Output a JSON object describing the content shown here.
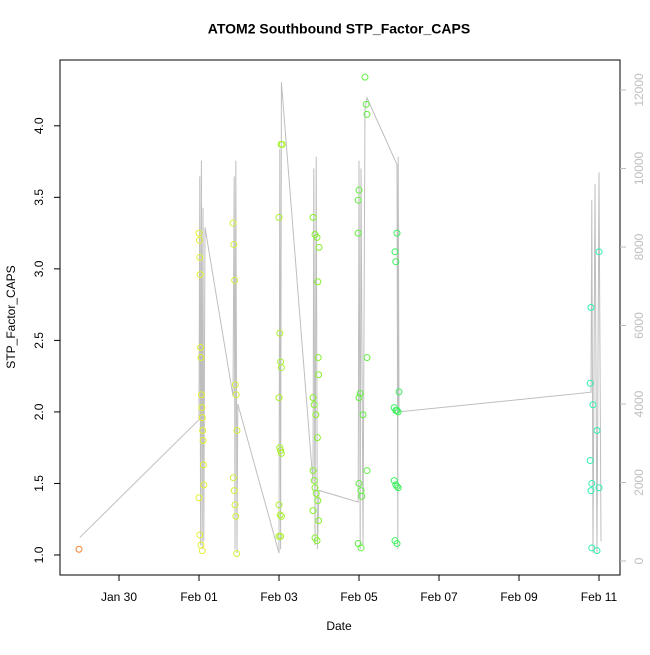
{
  "chart_data": {
    "type": "scatter",
    "title": "ATOM2 Southbound STP_Factor_CAPS",
    "x_label": "Date",
    "y_label": "STP_Factor_CAPS",
    "xlim": [
      28.525,
      42.525
    ],
    "ylim": [
      0.86,
      4.46
    ],
    "y2lim": [
      -357,
      12764
    ],
    "xticks": [
      {
        "value": 30,
        "label": "Jan 30"
      },
      {
        "value": 32,
        "label": "Feb 01"
      },
      {
        "value": 34,
        "label": "Feb 03"
      },
      {
        "value": 36,
        "label": "Feb 05"
      },
      {
        "value": 38,
        "label": "Feb 07"
      },
      {
        "value": 40,
        "label": "Feb 09"
      },
      {
        "value": 42,
        "label": "Feb 11"
      }
    ],
    "yticks": [
      {
        "value": 1,
        "label": "1.0"
      },
      {
        "value": 1.5,
        "label": "1.5"
      },
      {
        "value": 2,
        "label": "2.0"
      },
      {
        "value": 2.5,
        "label": "2.5"
      },
      {
        "value": 3,
        "label": "3.0"
      },
      {
        "value": 3.5,
        "label": "3.5"
      },
      {
        "value": 4,
        "label": "4.0"
      }
    ],
    "y2ticks": [
      0,
      2000,
      4000,
      6000,
      8000,
      10000,
      12000
    ],
    "y2_color": "#bebebe",
    "series": [
      {
        "type": "line",
        "axis": "y2",
        "color": "#bebebe",
        "x": [
          29.02,
          32.0,
          32.02,
          32.04,
          32.06,
          32.08,
          32.1,
          32.12,
          32.15,
          32.85,
          32.88,
          32.9,
          32.92,
          32.95,
          32.97,
          34.0,
          34.02,
          34.04,
          34.06,
          34.85,
          34.87,
          34.9,
          34.93,
          34.96,
          35.0,
          35.98,
          36.0,
          36.03,
          36.05,
          36.1,
          36.15,
          36.2,
          36.95,
          36.97,
          36.98,
          37.0,
          41.8,
          41.82,
          41.85,
          41.9,
          41.95,
          42.0,
          42.05
        ],
        "values": [
          600,
          3600,
          9800,
          400,
          10200,
          300,
          9000,
          500,
          8500,
          4200,
          9800,
          300,
          10200,
          200,
          4000,
          200,
          10500,
          300,
          12200,
          2000,
          10000,
          400,
          10300,
          300,
          1800,
          1500,
          10200,
          300,
          10000,
          400,
          11500,
          11800,
          10100,
          300,
          10300,
          3800,
          4300,
          9200,
          200,
          9600,
          200,
          9900,
          500
        ]
      },
      {
        "color": "#f08030",
        "x": [
          29.0
        ],
        "values": [
          1.04
        ]
      },
      {
        "color": "#e4f030",
        "x": [
          32.0,
          32.01,
          32.02,
          32.03,
          32.04,
          32.05,
          32.06,
          32.07,
          32.08,
          32.09,
          32.1,
          32.11,
          32.12,
          32.0,
          32.02,
          32.05,
          32.08
        ],
        "values": [
          3.25,
          3.2,
          3.08,
          2.96,
          2.45,
          2.38,
          2.12,
          2.03,
          1.96,
          1.87,
          1.8,
          1.63,
          1.49,
          1.4,
          1.14,
          1.07,
          1.03
        ]
      },
      {
        "color": "#d4f040",
        "x": [
          32.85,
          32.87,
          32.89,
          32.91,
          32.93,
          32.95,
          32.86,
          32.88,
          32.9,
          32.92,
          32.94
        ],
        "values": [
          3.32,
          3.17,
          2.92,
          2.19,
          2.12,
          1.87,
          1.54,
          1.45,
          1.35,
          1.27,
          1.01
        ]
      },
      {
        "color": "#aaf030",
        "x": [
          34.05,
          34.08,
          34.0,
          34.02,
          34.04,
          34.06,
          34.0,
          34.02,
          34.04,
          34.06,
          34.0,
          34.03,
          34.06,
          34.0,
          34.04
        ],
        "values": [
          3.87,
          3.87,
          3.36,
          2.55,
          2.35,
          2.31,
          2.1,
          1.75,
          1.73,
          1.71,
          1.35,
          1.28,
          1.27,
          1.13,
          1.13
        ]
      },
      {
        "color": "#88f030",
        "x": [
          34.85,
          34.9,
          34.95,
          35.0,
          34.97,
          34.98,
          34.99,
          34.85,
          34.88,
          34.92,
          34.96,
          34.85,
          34.88,
          34.9,
          34.93,
          34.97,
          34.85,
          34.99,
          34.9,
          34.95
        ],
        "values": [
          3.36,
          3.24,
          3.22,
          3.15,
          2.91,
          2.38,
          2.26,
          2.1,
          2.05,
          1.98,
          1.82,
          1.59,
          1.52,
          1.47,
          1.43,
          1.38,
          1.31,
          1.24,
          1.12,
          1.1
        ]
      },
      {
        "color": "#60f040",
        "x": [
          36.15,
          36.18,
          36.2,
          36.0,
          35.98,
          35.98,
          36.2,
          36.03,
          36.0,
          36.1,
          36.0,
          36.05,
          36.07,
          35.98,
          36.05,
          36.2
        ],
        "values": [
          4.34,
          4.15,
          4.08,
          3.55,
          3.48,
          3.25,
          2.38,
          2.13,
          2.1,
          1.98,
          1.5,
          1.45,
          1.41,
          1.08,
          1.05,
          1.59
        ]
      },
      {
        "color": "#40f060",
        "x": [
          36.95,
          36.9,
          36.92,
          37.0,
          36.88,
          36.92,
          36.95,
          36.98,
          36.88,
          36.92,
          36.95,
          36.98,
          36.9,
          36.95
        ],
        "values": [
          3.25,
          3.12,
          3.05,
          2.14,
          2.03,
          2.01,
          2.01,
          2.0,
          1.52,
          1.49,
          1.48,
          1.47,
          1.1,
          1.08
        ]
      },
      {
        "color": "#30f0b0",
        "x": [
          42.0,
          41.8,
          41.78,
          41.85,
          41.78,
          41.82,
          41.8,
          41.82,
          41.95,
          41.95,
          42.0
        ],
        "values": [
          3.12,
          2.73,
          2.2,
          2.05,
          1.66,
          1.5,
          1.45,
          1.05,
          1.03,
          1.87,
          1.47
        ]
      }
    ]
  }
}
